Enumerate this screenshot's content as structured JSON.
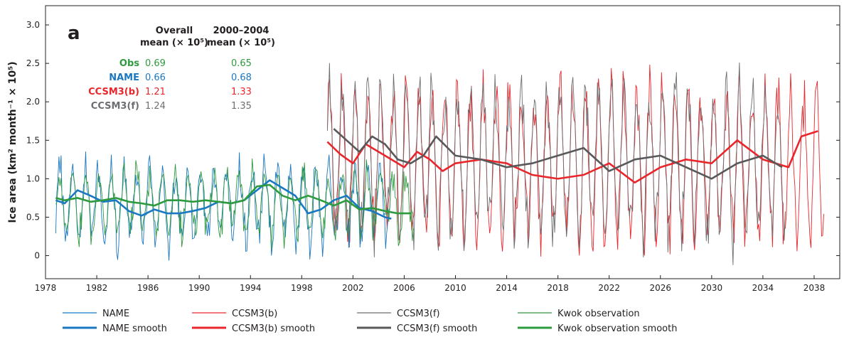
{
  "chart_data": {
    "type": "line",
    "panel_label": "a",
    "ylabel": "Ice area (km² month⁻¹ × 10⁵)",
    "xlabel": "",
    "xlim": [
      1978,
      2040
    ],
    "ylim": [
      -0.3,
      3.25
    ],
    "grid": false,
    "x_ticks": [
      "1978",
      "1982",
      "1986",
      "1990",
      "1994",
      "1998",
      "2002",
      "2006",
      "2010",
      "2014",
      "2018",
      "2022",
      "2026",
      "2030",
      "2034",
      "2038"
    ],
    "y_ticks": [
      "0",
      "0.5",
      "1.0",
      "1.5",
      "2.0",
      "2.5",
      "3.0"
    ],
    "stats_table": {
      "col1_header": [
        "Overall",
        "mean (× 10⁵)"
      ],
      "col2_header": [
        "2000–2004",
        "mean (× 10⁵)"
      ],
      "rows": [
        {
          "name": "Obs",
          "overall": "0.69",
          "recent": "0.65",
          "color": "#2e9a3e"
        },
        {
          "name": "NAME",
          "overall": "0.66",
          "recent": "0.68",
          "color": "#1a78c2"
        },
        {
          "name": "CCSM3(b)",
          "overall": "1.21",
          "recent": "1.33",
          "color": "#e8262b"
        },
        {
          "name": "CCSM3(f)",
          "overall": "1.24",
          "recent": "1.35",
          "color": "#6d6e71"
        }
      ]
    },
    "legend_placement": "bottom",
    "series": [
      {
        "name": "NAME",
        "color": "#1a78c2",
        "style": "thin",
        "x_range": [
          1978.8,
          2005.0
        ],
        "monthly_mean": 0.66,
        "seasonal_amplitude": 0.5,
        "seasonal_peak_month": 2
      },
      {
        "name": "NAME smooth",
        "color": "#1a78c2",
        "style": "thick",
        "x": [
          1978.8,
          1979.5,
          1980.5,
          1981.5,
          1982.5,
          1983.5,
          1984.5,
          1985.5,
          1986.5,
          1987.5,
          1988.5,
          1989.5,
          1990.5,
          1991.5,
          1992.5,
          1993.5,
          1994.5,
          1995.5,
          1996.5,
          1997.5,
          1998.5,
          1999.5,
          2000.5,
          2001.5,
          2002.5,
          2003.5,
          2004.5,
          2005.0
        ],
        "y": [
          0.72,
          0.68,
          0.85,
          0.78,
          0.7,
          0.72,
          0.58,
          0.52,
          0.6,
          0.55,
          0.55,
          0.58,
          0.62,
          0.7,
          0.68,
          0.72,
          0.85,
          0.98,
          0.88,
          0.78,
          0.55,
          0.6,
          0.72,
          0.78,
          0.62,
          0.58,
          0.5,
          0.48
        ]
      },
      {
        "name": "CCSM3(b)",
        "color": "#e8262b",
        "style": "thin",
        "x_range": [
          2000.0,
          2038.8
        ],
        "monthly_mean": 1.21,
        "seasonal_amplitude": 1.0,
        "seasonal_peak_month": 2
      },
      {
        "name": "CCSM3(b) smooth",
        "color": "#e8262b",
        "style": "thick",
        "x": [
          2000.0,
          2001.0,
          2002.0,
          2003.0,
          2004.0,
          2005.0,
          2006.0,
          2007.0,
          2008.0,
          2009.0,
          2010.0,
          2012.0,
          2014.0,
          2016.0,
          2018.0,
          2020.0,
          2022.0,
          2024.0,
          2026.0,
          2028.0,
          2030.0,
          2032.0,
          2034.0,
          2036.0,
          2037.0,
          2038.3
        ],
        "y": [
          1.48,
          1.32,
          1.2,
          1.45,
          1.35,
          1.25,
          1.15,
          1.35,
          1.25,
          1.1,
          1.2,
          1.25,
          1.2,
          1.05,
          1.0,
          1.05,
          1.2,
          0.95,
          1.15,
          1.25,
          1.2,
          1.5,
          1.25,
          1.15,
          1.55,
          1.62
        ]
      },
      {
        "name": "CCSM3(f)",
        "color": "#6d6e71",
        "style": "thin",
        "x_range": [
          2000.0,
          2035.8
        ],
        "monthly_mean": 1.24,
        "seasonal_amplitude": 1.0,
        "seasonal_peak_month": 2
      },
      {
        "name": "CCSM3(f) smooth",
        "color": "#58595b",
        "style": "thick",
        "x": [
          2000.5,
          2001.5,
          2002.5,
          2003.5,
          2004.5,
          2005.5,
          2006.5,
          2007.5,
          2008.5,
          2010.0,
          2012.0,
          2014.0,
          2016.0,
          2018.0,
          2020.0,
          2022.0,
          2024.0,
          2026.0,
          2028.0,
          2030.0,
          2032.0,
          2034.0,
          2035.5
        ],
        "y": [
          1.65,
          1.5,
          1.35,
          1.55,
          1.45,
          1.25,
          1.2,
          1.3,
          1.55,
          1.3,
          1.25,
          1.15,
          1.2,
          1.3,
          1.4,
          1.1,
          1.25,
          1.3,
          1.15,
          1.0,
          1.2,
          1.3,
          1.15
        ]
      },
      {
        "name": "Kwok observation",
        "color": "#2e9a3e",
        "style": "thin",
        "x_range": [
          1978.8,
          2006.8
        ],
        "monthly_mean": 0.69,
        "seasonal_amplitude": 0.4,
        "seasonal_peak_month": 2
      },
      {
        "name": "Kwok observation smooth",
        "color": "#2e9a3e",
        "style": "thick",
        "x": [
          1978.8,
          1979.5,
          1980.5,
          1981.5,
          1982.5,
          1983.5,
          1984.5,
          1985.5,
          1986.5,
          1987.5,
          1988.5,
          1989.5,
          1990.5,
          1991.5,
          1992.5,
          1993.5,
          1994.5,
          1995.5,
          1996.5,
          1997.5,
          1998.5,
          1999.5,
          2000.5,
          2001.5,
          2002.5,
          2003.5,
          2004.5,
          2005.5,
          2006.6
        ],
        "y": [
          0.75,
          0.72,
          0.75,
          0.7,
          0.72,
          0.75,
          0.7,
          0.68,
          0.65,
          0.72,
          0.72,
          0.7,
          0.72,
          0.7,
          0.68,
          0.72,
          0.9,
          0.92,
          0.78,
          0.72,
          0.78,
          0.72,
          0.65,
          0.72,
          0.6,
          0.62,
          0.58,
          0.55,
          0.55
        ]
      }
    ],
    "legend": [
      {
        "label": "NAME",
        "color": "#1a78c2",
        "style": "thin"
      },
      {
        "label": "NAME smooth",
        "color": "#1a78c2",
        "style": "thick"
      },
      {
        "label": "CCSM3(b)",
        "color": "#e8262b",
        "style": "thin"
      },
      {
        "label": "CCSM3(b) smooth",
        "color": "#e8262b",
        "style": "thick"
      },
      {
        "label": "CCSM3(f)",
        "color": "#6d6e71",
        "style": "thin"
      },
      {
        "label": "CCSM3(f) smooth",
        "color": "#58595b",
        "style": "thick"
      },
      {
        "label": "Kwok observation",
        "color": "#2e9a3e",
        "style": "thin"
      },
      {
        "label": "Kwok observation smooth",
        "color": "#2e9a3e",
        "style": "thick"
      }
    ]
  }
}
